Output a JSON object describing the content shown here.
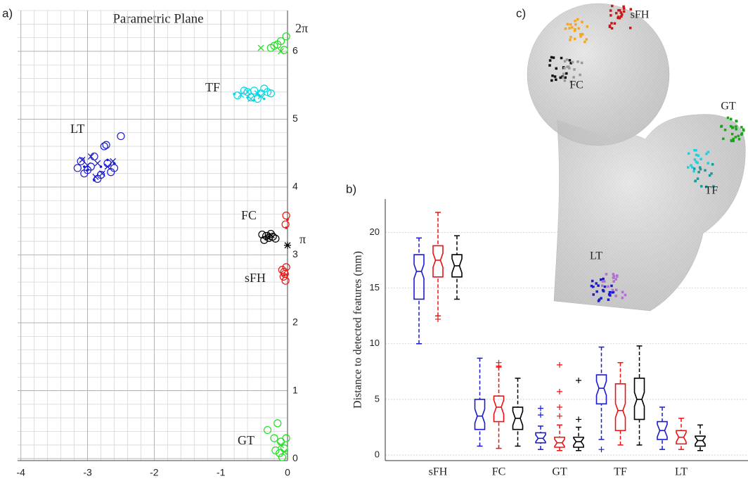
{
  "chart_data": [
    {
      "type": "scatter",
      "title": "Parametric Plane",
      "panel_label": "a)",
      "xlim": [
        -4.05,
        0
      ],
      "ylim": [
        -0.03,
        6.6
      ],
      "xticks": [
        -4,
        -3,
        -2,
        -1,
        0
      ],
      "yticks": [
        0,
        1,
        2,
        3,
        4,
        5,
        6
      ],
      "grid": true,
      "minor_grid_step": 0.2,
      "annotations": [
        "LT",
        "TF",
        "FC",
        "sFH",
        "GT",
        "2π",
        "π"
      ],
      "series": [
        {
          "color": "#1a1ad0",
          "marker": "o",
          "x": [
            -3.1,
            -3.05,
            -2.95,
            -2.85,
            -2.7,
            -2.75,
            -2.6,
            -3.0,
            -2.8,
            -2.65,
            -2.5,
            -2.9,
            -3.15,
            -2.72
          ],
          "y": [
            4.38,
            4.2,
            4.3,
            4.12,
            4.35,
            4.6,
            4.28,
            4.25,
            4.18,
            4.22,
            4.75,
            4.45,
            4.28,
            4.62
          ]
        },
        {
          "color": "#1a1ad0",
          "marker": "x",
          "x": [
            -3.08,
            -2.95,
            -2.85,
            -2.7,
            -2.78,
            -2.62,
            -3.0,
            -2.88
          ],
          "y": [
            4.4,
            4.45,
            4.35,
            4.3,
            4.2,
            4.38,
            4.32,
            4.15
          ]
        },
        {
          "color": "#1a1ad0",
          "marker": ".",
          "x": [
            -3.0,
            -2.9,
            -2.8,
            -2.7,
            -3.05,
            -2.6
          ],
          "y": [
            4.25,
            4.1,
            4.3,
            4.4,
            4.3,
            4.35
          ]
        },
        {
          "color": "#00d8e6",
          "marker": "o",
          "x": [
            -0.75,
            -0.6,
            -0.5,
            -0.4,
            -0.3,
            -0.55,
            -0.45,
            -0.65,
            -0.35,
            -0.25
          ],
          "y": [
            5.35,
            5.4,
            5.42,
            5.38,
            5.4,
            5.32,
            5.3,
            5.42,
            5.45,
            5.38
          ]
        },
        {
          "color": "#00d8e6",
          "marker": "x",
          "x": [
            -0.7,
            -0.55,
            -0.45,
            -0.6,
            -0.4
          ],
          "y": [
            5.36,
            5.3,
            5.38,
            5.4,
            5.34
          ]
        },
        {
          "color": "#00d8e6",
          "marker": ".",
          "x": [
            -0.8,
            -0.5,
            -0.35,
            -0.6
          ],
          "y": [
            5.37,
            5.28,
            5.3,
            5.32
          ]
        },
        {
          "color": "#000000",
          "marker": "o",
          "x": [
            -0.38,
            -0.32,
            -0.28,
            -0.22,
            -0.35,
            -0.25,
            -0.18
          ],
          "y": [
            3.3,
            3.28,
            3.25,
            3.27,
            3.22,
            3.31,
            3.24
          ]
        },
        {
          "color": "#000000",
          "marker": "x",
          "x": [
            -0.3,
            -0.24
          ],
          "y": [
            3.26,
            3.29
          ]
        },
        {
          "color": "#ee1111",
          "marker": "o",
          "x": [
            -0.08,
            -0.04,
            -0.02,
            -0.06,
            -0.03,
            -0.05,
            -0.02,
            -0.03
          ],
          "y": [
            2.78,
            2.72,
            2.82,
            2.68,
            2.62,
            2.75,
            3.58,
            3.45
          ]
        },
        {
          "color": "#ee1111",
          "marker": ".",
          "x": [
            -0.05,
            -0.02,
            0
          ],
          "y": [
            2.7,
            3.4,
            3.52
          ]
        },
        {
          "color": "#22dd22",
          "marker": "o",
          "x": [
            -0.3,
            -0.15,
            -0.2,
            -0.1,
            -0.05,
            -0.12,
            -0.02,
            -0.18,
            -0.08,
            -0.25,
            -0.15,
            -0.05,
            -0.02,
            -0.1,
            -0.2
          ],
          "y": [
            0.42,
            0.52,
            0.3,
            0.25,
            0.15,
            0.08,
            0.3,
            0.12,
            0.02,
            6.05,
            6.1,
            6.02,
            6.22,
            6.15,
            6.08
          ]
        },
        {
          "color": "#22dd22",
          "marker": "x",
          "x": [
            -0.1,
            -0.05,
            -0.4,
            -0.1
          ],
          "y": [
            0.2,
            0.1,
            6.05,
            6.0
          ]
        },
        {
          "color": "#000000",
          "marker": "*",
          "x": [
            0
          ],
          "y": [
            3.14159
          ]
        }
      ]
    },
    {
      "type": "box",
      "panel_label": "b)",
      "ylabel": "Distance to detected features (mm)",
      "categories": [
        "sFH",
        "FC",
        "GT",
        "TF",
        "LT"
      ],
      "ylim": [
        -0.5,
        23
      ],
      "yticks": [
        0,
        5,
        10,
        15,
        20
      ],
      "grid": true,
      "series": [
        {
          "color": "#1a1ad0",
          "boxes": [
            {
              "low": 10,
              "q1": 14,
              "median": 16.5,
              "q3": 18,
              "high": 19.5,
              "outliers": []
            },
            {
              "low": 0.8,
              "q1": 2.3,
              "median": 3.5,
              "q3": 5,
              "high": 8.7,
              "outliers": []
            },
            {
              "low": 0.5,
              "q1": 1.1,
              "median": 1.5,
              "q3": 2,
              "high": 2.6,
              "outliers": [
                3.6,
                4.2
              ]
            },
            {
              "low": 1.4,
              "q1": 4.6,
              "median": 6,
              "q3": 7.2,
              "high": 9.7,
              "outliers": [
                0.5
              ]
            },
            {
              "low": 0.5,
              "q1": 1.4,
              "median": 2.2,
              "q3": 3,
              "high": 4.3,
              "outliers": []
            }
          ]
        },
        {
          "color": "#ee1111",
          "boxes": [
            {
              "low": 12.5,
              "q1": 16,
              "median": 17.5,
              "q3": 18.8,
              "high": 21.8,
              "outliers": [
                12.2
              ]
            },
            {
              "low": 0.6,
              "q1": 3,
              "median": 4.3,
              "q3": 5.3,
              "high": 7.9,
              "outliers": [
                8,
                8.3
              ]
            },
            {
              "low": 0.4,
              "q1": 0.7,
              "median": 1.1,
              "q3": 1.6,
              "high": 2.7,
              "outliers": [
                3.5,
                4.3,
                5.7,
                8.1
              ]
            },
            {
              "low": 0.9,
              "q1": 2.2,
              "median": 4,
              "q3": 6.4,
              "high": 8.3,
              "outliers": []
            },
            {
              "low": 0.5,
              "q1": 1,
              "median": 1.6,
              "q3": 2.2,
              "high": 3.3,
              "outliers": []
            }
          ]
        },
        {
          "color": "#000000",
          "boxes": [
            {
              "low": 14,
              "q1": 16,
              "median": 17,
              "q3": 18,
              "high": 19.7,
              "outliers": []
            },
            {
              "low": 0.8,
              "q1": 2.3,
              "median": 3.3,
              "q3": 4.3,
              "high": 6.9,
              "outliers": []
            },
            {
              "low": 0.4,
              "q1": 0.7,
              "median": 1.2,
              "q3": 1.6,
              "high": 2.5,
              "outliers": [
                3.2,
                6.7
              ]
            },
            {
              "low": 0.9,
              "q1": 3.2,
              "median": 5,
              "q3": 6.9,
              "high": 9.8,
              "outliers": []
            },
            {
              "low": 0.4,
              "q1": 0.8,
              "median": 1.3,
              "q3": 1.7,
              "high": 2.7,
              "outliers": []
            }
          ]
        }
      ]
    }
  ],
  "figure": {
    "panel_label": "c)",
    "mesh_labels": [
      "sFH",
      "FC",
      "GT",
      "TF",
      "LT"
    ]
  }
}
